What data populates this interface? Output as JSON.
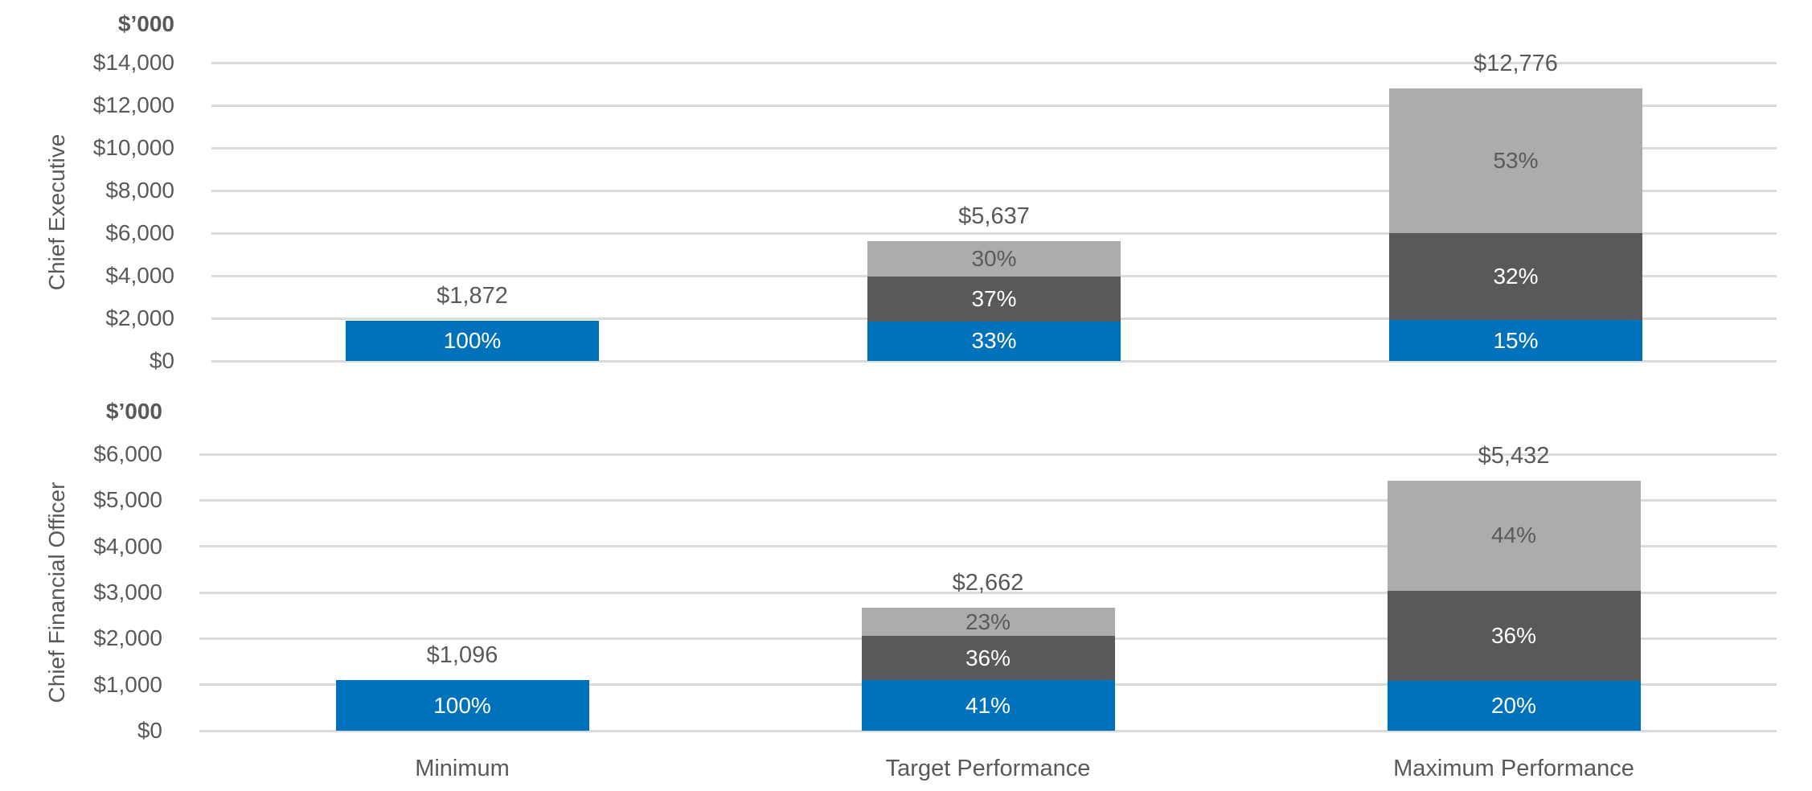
{
  "colors": {
    "blue": "#0072BC",
    "dark_gray": "#58595B",
    "light_gray": "#ABACAE",
    "label_text": "#595959",
    "pct_text_on_dark": "#FFFFFF",
    "pct_text_on_light": "#595A5C",
    "gridline": "#DBDBDB"
  },
  "x_axis_labels": [
    "Minimum",
    "Target Performance",
    "Maximum Performance"
  ],
  "chart_data": [
    {
      "type": "bar",
      "stacked": true,
      "orientation": "vertical",
      "row_label": "Chief Executive",
      "unit_label": "$’000",
      "categories": [
        "Minimum",
        "Target Performance",
        "Maximum Performance"
      ],
      "ylim": [
        0,
        14000
      ],
      "grid": true,
      "legend": "none",
      "y_ticks": [
        {
          "value": 0,
          "label": "$0"
        },
        {
          "value": 2000,
          "label": "$2,000"
        },
        {
          "value": 4000,
          "label": "$4,000"
        },
        {
          "value": 6000,
          "label": "$6,000"
        },
        {
          "value": 8000,
          "label": "$8,000"
        },
        {
          "value": 10000,
          "label": "$10,000"
        },
        {
          "value": 12000,
          "label": "$12,000"
        },
        {
          "value": 14000,
          "label": "$14,000"
        }
      ],
      "bars": [
        {
          "category": "Minimum",
          "total": 1872,
          "total_label": "$1,872",
          "segments": [
            {
              "color": "blue",
              "percent": 100,
              "label": "100%"
            }
          ]
        },
        {
          "category": "Target Performance",
          "total": 5637,
          "total_label": "$5,637",
          "segments": [
            {
              "color": "blue",
              "percent": 33,
              "label": "33%"
            },
            {
              "color": "dark_gray",
              "percent": 37,
              "label": "37%"
            },
            {
              "color": "light_gray",
              "percent": 30,
              "label": "30%"
            }
          ]
        },
        {
          "category": "Maximum Performance",
          "total": 12776,
          "total_label": "$12,776",
          "segments": [
            {
              "color": "blue",
              "percent": 15,
              "label": "15%"
            },
            {
              "color": "dark_gray",
              "percent": 32,
              "label": "32%"
            },
            {
              "color": "light_gray",
              "percent": 53,
              "label": "53%"
            }
          ]
        }
      ]
    },
    {
      "type": "bar",
      "stacked": true,
      "orientation": "vertical",
      "row_label": "Chief Financial Officer",
      "unit_label": "$’000",
      "categories": [
        "Minimum",
        "Target Performance",
        "Maximum Performance"
      ],
      "ylim": [
        0,
        6000
      ],
      "grid": true,
      "legend": "none",
      "y_ticks": [
        {
          "value": 0,
          "label": "$0"
        },
        {
          "value": 1000,
          "label": "$1,000"
        },
        {
          "value": 2000,
          "label": "$2,000"
        },
        {
          "value": 3000,
          "label": "$3,000"
        },
        {
          "value": 4000,
          "label": "$4,000"
        },
        {
          "value": 5000,
          "label": "$5,000"
        },
        {
          "value": 6000,
          "label": "$6,000"
        }
      ],
      "bars": [
        {
          "category": "Minimum",
          "total": 1096,
          "total_label": "$1,096",
          "segments": [
            {
              "color": "blue",
              "percent": 100,
              "label": "100%"
            }
          ]
        },
        {
          "category": "Target Performance",
          "total": 2662,
          "total_label": "$2,662",
          "segments": [
            {
              "color": "blue",
              "percent": 41,
              "label": "41%"
            },
            {
              "color": "dark_gray",
              "percent": 36,
              "label": "36%"
            },
            {
              "color": "light_gray",
              "percent": 23,
              "label": "23%"
            }
          ]
        },
        {
          "category": "Maximum Performance",
          "total": 5432,
          "total_label": "$5,432",
          "segments": [
            {
              "color": "blue",
              "percent": 20,
              "label": "20%"
            },
            {
              "color": "dark_gray",
              "percent": 36,
              "label": "36%"
            },
            {
              "color": "light_gray",
              "percent": 44,
              "label": "44%"
            }
          ]
        }
      ]
    }
  ]
}
